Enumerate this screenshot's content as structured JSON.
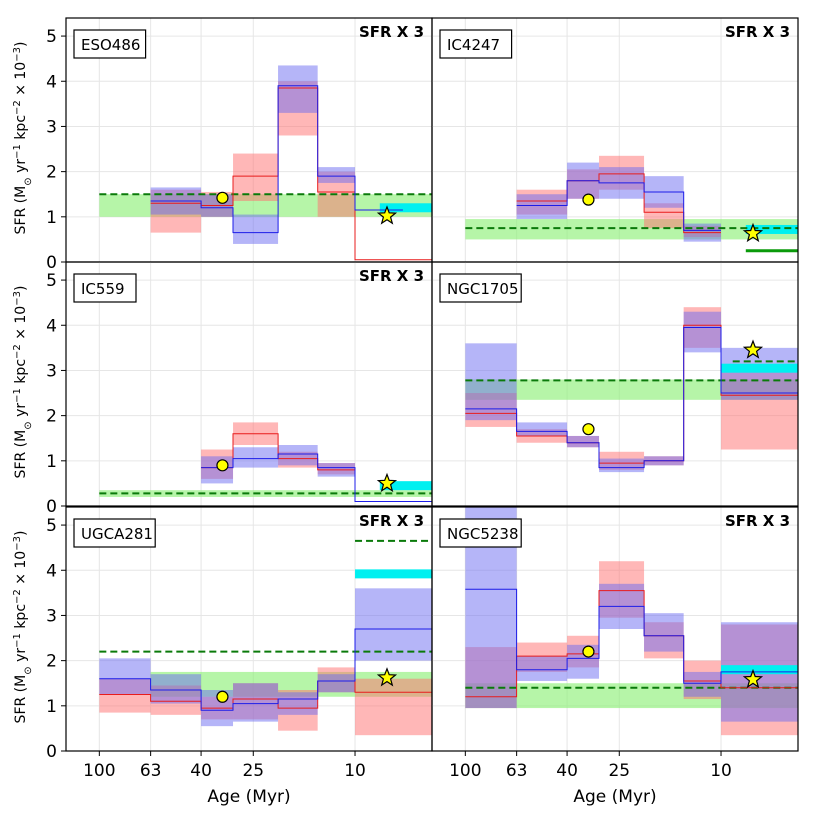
{
  "chart_data": {
    "type": "step-area",
    "layout": "3x2 grid, shared axes",
    "xlabel": "Age (Myr)",
    "ylabel_prefix": "SFR (M",
    "ylabel_sub": "⊙",
    "ylabel_mid1": " yr",
    "ylabel_sup1": "−1",
    "ylabel_mid2": " kpc",
    "ylabel_sup2": "−2",
    "ylabel_mid3": " × 10",
    "ylabel_sup3": "−3",
    "ylabel_suffix": ")",
    "ylim": [
      0,
      5.4
    ],
    "yticks": [
      0,
      1,
      2,
      3,
      4,
      5
    ],
    "xrange_myr": [
      135,
      5
    ],
    "xticks": [
      100,
      63,
      40,
      25,
      10
    ],
    "annotation_text": "SFR X 3",
    "panels": [
      {
        "name": "ESO486",
        "annot": true,
        "green_band": [
          [
            100,
            5,
            1.0,
            1.5
          ]
        ],
        "green_dash": [
          [
            100,
            5,
            1.5
          ]
        ],
        "cyan": [
          [
            8,
            5,
            1.2
          ]
        ],
        "red_band": [
          [
            63,
            40,
            0.65,
            1.6
          ],
          [
            40,
            30,
            1.0,
            1.55
          ],
          [
            30,
            20,
            1.35,
            2.4
          ],
          [
            20,
            14,
            2.8,
            4.0
          ],
          [
            14,
            10,
            1.0,
            2.0
          ]
        ],
        "red_line": [
          [
            63,
            40,
            1.3
          ],
          [
            40,
            30,
            1.25
          ],
          [
            30,
            20,
            1.9
          ],
          [
            20,
            14,
            3.85
          ],
          [
            14,
            10,
            1.55
          ],
          [
            10,
            5,
            0.05
          ]
        ],
        "blue_band": [
          [
            63,
            40,
            1.05,
            1.65
          ],
          [
            40,
            30,
            1.0,
            1.5
          ],
          [
            30,
            20,
            0.4,
            1.05
          ],
          [
            20,
            14,
            3.3,
            4.35
          ],
          [
            14,
            10,
            1.75,
            2.1
          ]
        ],
        "blue_line": [
          [
            63,
            40,
            1.35
          ],
          [
            40,
            30,
            1.2
          ],
          [
            30,
            20,
            0.65
          ],
          [
            20,
            14,
            3.9
          ],
          [
            14,
            10,
            1.9
          ],
          [
            10,
            6.5,
            1.15
          ]
        ],
        "dot": [
          33,
          1.42
        ],
        "star": [
          7.5,
          1.02
        ]
      },
      {
        "name": "IC4247",
        "annot": true,
        "green_band": [
          [
            100,
            5,
            0.5,
            0.95
          ]
        ],
        "green_dash": [
          [
            100,
            5,
            0.75
          ]
        ],
        "cyan": [
          [
            8,
            5,
            0.72
          ]
        ],
        "red_band": [
          [
            63,
            40,
            1.05,
            1.6
          ],
          [
            40,
            30,
            1.4,
            2.05
          ],
          [
            30,
            20,
            1.6,
            2.35
          ],
          [
            20,
            14,
            0.75,
            1.3
          ],
          [
            14,
            10,
            0.55,
            0.8
          ]
        ],
        "red_line": [
          [
            63,
            40,
            1.35
          ],
          [
            40,
            30,
            1.8
          ],
          [
            30,
            20,
            1.95
          ],
          [
            20,
            14,
            1.1
          ],
          [
            14,
            10,
            0.65
          ]
        ],
        "blue_band": [
          [
            63,
            40,
            0.95,
            1.5
          ],
          [
            40,
            30,
            1.4,
            2.2
          ],
          [
            30,
            20,
            1.4,
            2.1
          ],
          [
            20,
            14,
            1.2,
            1.9
          ],
          [
            14,
            10,
            0.45,
            0.85
          ]
        ],
        "blue_line": [
          [
            63,
            40,
            1.25
          ],
          [
            40,
            30,
            1.8
          ],
          [
            30,
            20,
            1.75
          ],
          [
            20,
            14,
            1.55
          ],
          [
            14,
            10,
            0.7
          ]
        ],
        "dot": [
          33,
          1.38
        ],
        "star": [
          7.5,
          0.63
        ],
        "green_solid": [
          [
            8,
            5,
            0.25
          ]
        ]
      },
      {
        "name": "IC559",
        "annot": true,
        "green_band": [
          [
            100,
            5,
            0.2,
            0.35
          ]
        ],
        "green_dash": [
          [
            100,
            5,
            0.28
          ]
        ],
        "cyan": [
          [
            8,
            5,
            0.45
          ]
        ],
        "red_band": [
          [
            40,
            30,
            0.6,
            1.25
          ],
          [
            30,
            20,
            1.35,
            1.85
          ],
          [
            20,
            14,
            0.85,
            1.2
          ],
          [
            14,
            10,
            0.7,
            0.95
          ]
        ],
        "red_line": [
          [
            40,
            30,
            0.85
          ],
          [
            30,
            20,
            1.6
          ],
          [
            20,
            14,
            1.05
          ],
          [
            14,
            10,
            0.8
          ],
          [
            10,
            5,
            0.1
          ]
        ],
        "blue_band": [
          [
            40,
            30,
            0.5,
            1.1
          ],
          [
            30,
            20,
            0.85,
            1.3
          ],
          [
            20,
            14,
            0.9,
            1.35
          ],
          [
            14,
            10,
            0.65,
            0.95
          ]
        ],
        "blue_line": [
          [
            40,
            30,
            0.85
          ],
          [
            30,
            20,
            1.05
          ],
          [
            20,
            14,
            1.15
          ],
          [
            14,
            10,
            0.85
          ],
          [
            10,
            5,
            0.1
          ]
        ],
        "dot": [
          33,
          0.9
        ],
        "star": [
          7.5,
          0.5
        ]
      },
      {
        "name": "NGC1705",
        "annot": false,
        "green_band": [
          [
            100,
            5,
            2.35,
            2.8
          ]
        ],
        "green_dash": [
          [
            100,
            5,
            2.78
          ],
          [
            9,
            5,
            3.2
          ]
        ],
        "cyan": [
          [
            10,
            5,
            3.05
          ]
        ],
        "red_band": [
          [
            100,
            63,
            1.75,
            2.5
          ],
          [
            63,
            40,
            1.4,
            1.7
          ],
          [
            40,
            30,
            1.3,
            1.55
          ],
          [
            30,
            20,
            0.8,
            1.2
          ],
          [
            20,
            14,
            0.9,
            1.1
          ],
          [
            14,
            10,
            3.5,
            4.4
          ],
          [
            10,
            5,
            1.25,
            3.0
          ]
        ],
        "red_line": [
          [
            100,
            63,
            2.05
          ],
          [
            63,
            40,
            1.55
          ],
          [
            40,
            30,
            1.4
          ],
          [
            30,
            20,
            0.95
          ],
          [
            20,
            14,
            1.0
          ],
          [
            14,
            10,
            4.0
          ],
          [
            10,
            5,
            2.45
          ]
        ],
        "blue_band": [
          [
            100,
            63,
            1.9,
            3.6
          ],
          [
            63,
            40,
            1.55,
            1.85
          ],
          [
            40,
            30,
            1.3,
            1.55
          ],
          [
            30,
            20,
            0.75,
            1.05
          ],
          [
            20,
            14,
            0.9,
            1.1
          ],
          [
            14,
            10,
            3.4,
            4.3
          ],
          [
            10,
            5,
            2.35,
            3.5
          ]
        ],
        "blue_line": [
          [
            100,
            63,
            2.15
          ],
          [
            63,
            40,
            1.65
          ],
          [
            40,
            30,
            1.4
          ],
          [
            30,
            20,
            0.85
          ],
          [
            20,
            14,
            1.0
          ],
          [
            14,
            10,
            3.95
          ],
          [
            10,
            5,
            2.5
          ]
        ],
        "dot": [
          33,
          1.7
        ],
        "star": [
          7.5,
          3.45
        ]
      },
      {
        "name": "UGCA281",
        "annot": true,
        "green_band": [
          [
            63,
            5,
            1.2,
            1.75
          ]
        ],
        "green_dash": [
          [
            100,
            5,
            2.2
          ],
          [
            10,
            5,
            4.65
          ]
        ],
        "cyan": [
          [
            10,
            5,
            3.92
          ]
        ],
        "red_band": [
          [
            100,
            63,
            0.85,
            1.6
          ],
          [
            63,
            40,
            0.8,
            1.45
          ],
          [
            40,
            30,
            0.7,
            1.2
          ],
          [
            30,
            20,
            0.7,
            1.5
          ],
          [
            20,
            14,
            0.45,
            1.35
          ],
          [
            14,
            10,
            1.3,
            1.85
          ],
          [
            10,
            5,
            0.35,
            1.6
          ]
        ],
        "red_line": [
          [
            100,
            63,
            1.25
          ],
          [
            63,
            40,
            1.1
          ],
          [
            40,
            30,
            0.95
          ],
          [
            30,
            20,
            1.15
          ],
          [
            20,
            14,
            0.95
          ],
          [
            14,
            10,
            1.55
          ],
          [
            10,
            5,
            1.3
          ]
        ],
        "blue_band": [
          [
            100,
            63,
            1.25,
            2.05
          ],
          [
            63,
            40,
            1.05,
            1.7
          ],
          [
            40,
            30,
            0.55,
            1.35
          ],
          [
            30,
            20,
            0.65,
            1.5
          ],
          [
            20,
            14,
            0.8,
            1.3
          ],
          [
            14,
            10,
            1.3,
            1.7
          ],
          [
            10,
            5,
            2.0,
            3.6
          ]
        ],
        "blue_line": [
          [
            100,
            63,
            1.6
          ],
          [
            63,
            40,
            1.35
          ],
          [
            40,
            30,
            0.9
          ],
          [
            30,
            20,
            1.05
          ],
          [
            20,
            14,
            1.15
          ],
          [
            14,
            10,
            1.55
          ],
          [
            10,
            5,
            2.7
          ]
        ],
        "dot": [
          33,
          1.2
        ],
        "star": [
          7.5,
          1.62
        ]
      },
      {
        "name": "NGC5238",
        "annot": true,
        "green_band": [
          [
            100,
            5,
            0.95,
            1.5
          ]
        ],
        "green_dash": [
          [
            100,
            5,
            1.4
          ]
        ],
        "cyan": [
          [
            10,
            5,
            1.8
          ]
        ],
        "red_band": [
          [
            100,
            63,
            0.95,
            2.3
          ],
          [
            63,
            40,
            1.75,
            2.4
          ],
          [
            40,
            30,
            1.85,
            2.55
          ],
          [
            30,
            20,
            2.95,
            4.2
          ],
          [
            20,
            14,
            2.05,
            2.85
          ],
          [
            14,
            10,
            1.15,
            2.0
          ],
          [
            10,
            5,
            0.35,
            2.8
          ]
        ],
        "red_line": [
          [
            100,
            63,
            1.2
          ],
          [
            63,
            40,
            2.1
          ],
          [
            40,
            30,
            2.15
          ],
          [
            30,
            20,
            3.55
          ],
          [
            20,
            14,
            2.55
          ],
          [
            14,
            10,
            1.55
          ],
          [
            10,
            5,
            1.4
          ]
        ],
        "blue_band": [
          [
            100,
            63,
            0.95,
            5.4
          ],
          [
            63,
            40,
            1.55,
            2.1
          ],
          [
            40,
            30,
            1.6,
            2.35
          ],
          [
            30,
            20,
            2.7,
            3.7
          ],
          [
            20,
            14,
            2.2,
            3.05
          ],
          [
            14,
            10,
            1.2,
            1.75
          ],
          [
            10,
            5,
            0.65,
            2.85
          ]
        ],
        "blue_line": [
          [
            100,
            63,
            3.58
          ],
          [
            63,
            40,
            1.8
          ],
          [
            40,
            30,
            2.05
          ],
          [
            30,
            20,
            3.2
          ],
          [
            20,
            14,
            2.55
          ],
          [
            14,
            10,
            1.5
          ],
          [
            10,
            5,
            1.75
          ]
        ],
        "dot": [
          33,
          2.2
        ],
        "star": [
          7.5,
          1.58
        ]
      }
    ]
  }
}
